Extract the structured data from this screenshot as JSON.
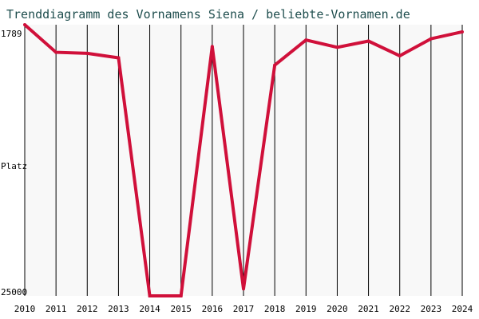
{
  "chart_data": {
    "type": "line",
    "title": "Trenddiagramm des Vornamens Siena / beliebte-Vornamen.de",
    "ylabel": "Platz",
    "y_top_label": "1789",
    "y_bottom_label": "25000",
    "y_inverted": true,
    "ylim": [
      1789,
      25000
    ],
    "x": [
      "2010",
      "2011",
      "2012",
      "2013",
      "2014",
      "2015",
      "2016",
      "2017",
      "2018",
      "2019",
      "2020",
      "2021",
      "2022",
      "2023",
      "2024"
    ],
    "values": [
      1789,
      4150,
      4240,
      4620,
      25000,
      25000,
      3650,
      24400,
      5250,
      3100,
      3720,
      3190,
      4450,
      2990,
      2400
    ],
    "colors": {
      "line": "#d0103a",
      "grid": "#000000",
      "title": "#1f4e4e",
      "background": "#f8f8f8"
    },
    "grid": true
  }
}
